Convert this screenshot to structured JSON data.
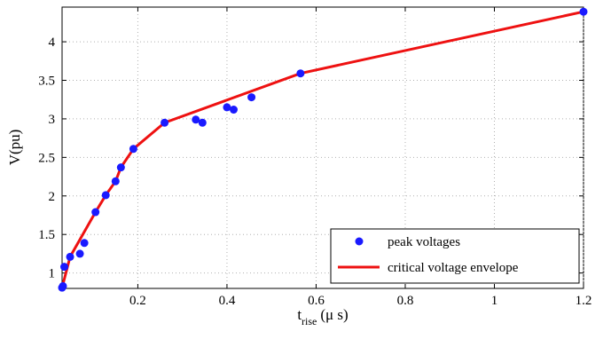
{
  "chart_data": {
    "type": "scatter",
    "xlabel": {
      "main": "t",
      "sub": "rise",
      "unit": "(μ s)"
    },
    "ylabel": "V(pu)",
    "xlim": [
      0.03,
      1.2
    ],
    "ylim": [
      0.8,
      4.45
    ],
    "x_ticks": [
      0.2,
      0.4,
      0.6,
      0.8,
      1,
      1.2
    ],
    "x_tick_labels": [
      "0.2",
      "0.4",
      "0.6",
      "0.8",
      "1",
      "1.2"
    ],
    "y_ticks": [
      1,
      1.5,
      2,
      2.5,
      3,
      3.5,
      4
    ],
    "y_tick_labels": [
      "1",
      "1.5",
      "2",
      "2.5",
      "3",
      "3.5",
      "4"
    ],
    "grid": true,
    "legend_position": "bottom-right",
    "colors": {
      "points": "#1a1aff",
      "line": "#ee1111"
    },
    "series": [
      {
        "name": "peak voltages",
        "kind": "scatter",
        "x": [
          0.03,
          0.032,
          0.035,
          0.048,
          0.07,
          0.08,
          0.105,
          0.128,
          0.15,
          0.162,
          0.19,
          0.26,
          0.33,
          0.345,
          0.4,
          0.415,
          0.455,
          0.565,
          1.2
        ],
        "y": [
          0.81,
          0.83,
          1.08,
          1.21,
          1.25,
          1.39,
          1.79,
          2.01,
          2.19,
          2.37,
          2.61,
          2.95,
          2.99,
          2.95,
          3.15,
          3.12,
          3.28,
          3.59,
          4.39
        ]
      },
      {
        "name": "critical voltage envelope",
        "kind": "line",
        "x": [
          0.03,
          0.048,
          0.105,
          0.128,
          0.15,
          0.162,
          0.19,
          0.26,
          0.565,
          1.2
        ],
        "y": [
          0.81,
          1.21,
          1.79,
          2.01,
          2.19,
          2.37,
          2.61,
          2.95,
          3.59,
          4.39
        ]
      }
    ]
  }
}
